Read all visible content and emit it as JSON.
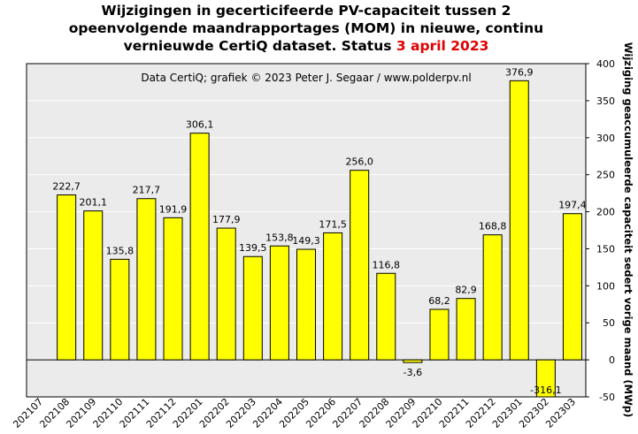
{
  "chart_data": {
    "type": "bar",
    "title_lines": [
      "Wijzigingen  in gecerticifeerde PV-capaciteit tussen 2",
      "opeenvolgende maandrapportages (MOM) in nieuwe, continu",
      "vernieuwde CertiQ dataset. Status "
    ],
    "title_highlight": "3 april 2023",
    "credit": "Data CertiQ; grafiek © 2023 Peter J. Segaar / www.polderpv.nl",
    "ylabel": "Wijziging geaccumuleerde capaciteit sedert vorige maand (MWp)",
    "xlabel": "",
    "ylim": [
      -50,
      400
    ],
    "yticks": [
      -50,
      0,
      50,
      100,
      150,
      200,
      250,
      300,
      350,
      400
    ],
    "y_axis_position": "right",
    "grid": true,
    "categories": [
      "202107",
      "202108",
      "202109",
      "202110",
      "202111",
      "202112",
      "202201",
      "202202",
      "202203",
      "202204",
      "202205",
      "202206",
      "202207",
      "202208",
      "202209",
      "202210",
      "202211",
      "202212",
      "202301",
      "202302",
      "202303"
    ],
    "values": [
      null,
      222.7,
      201.1,
      135.8,
      217.7,
      191.9,
      306.1,
      177.9,
      139.5,
      153.8,
      149.3,
      171.5,
      256.0,
      116.8,
      -3.6,
      68.2,
      82.9,
      168.8,
      376.9,
      -316.1,
      197.4
    ],
    "value_labels": [
      "",
      "222,7",
      "201,1",
      "135,8",
      "217,7",
      "191,9",
      "306,1",
      "177,9",
      "139,5",
      "153,8",
      "149,3",
      "171,5",
      "256,0",
      "116,8",
      "-3,6",
      "68,2",
      "82,9",
      "168,8",
      "376,9",
      "-316,1",
      "197,4"
    ],
    "colors": {
      "bar": "#ffff00",
      "bar_edge": "#000000",
      "plot_bg": "#ebebeb",
      "grid": "#ffffff",
      "highlight": "#e00000"
    }
  }
}
